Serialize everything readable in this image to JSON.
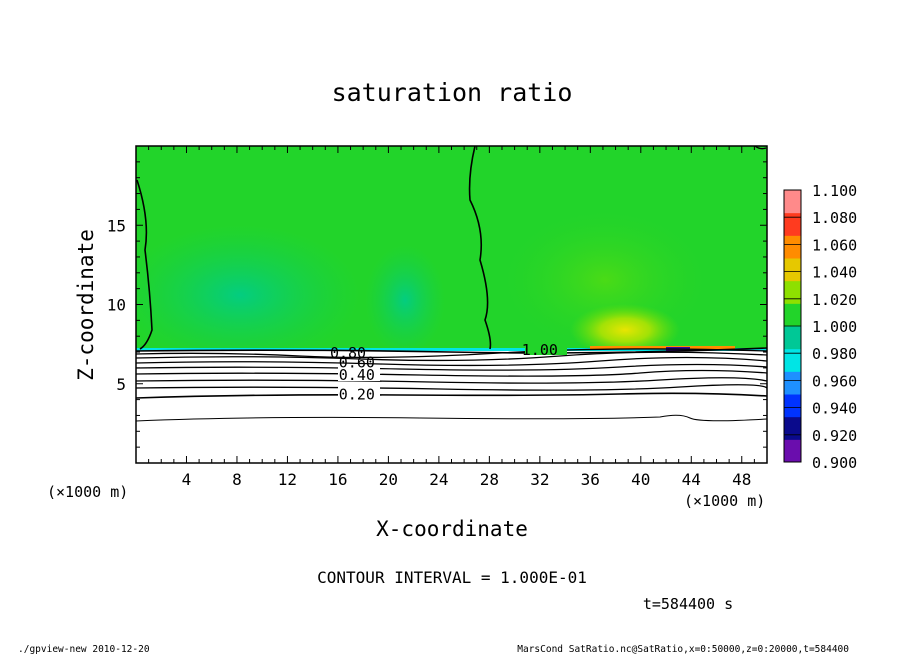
{
  "chart_data": {
    "type": "heatmap",
    "title": "saturation ratio",
    "xlabel": "X-coordinate",
    "ylabel": "Z-coordinate",
    "x_unit_left": "(×1000 m)",
    "x_unit_right": "(×1000 m)",
    "xlim": [
      0,
      50
    ],
    "ylim": [
      0,
      20
    ],
    "x_ticks": [
      4,
      8,
      12,
      16,
      20,
      24,
      28,
      32,
      36,
      40,
      44,
      48
    ],
    "y_ticks": [
      5,
      10,
      15
    ],
    "colorbar": {
      "levels": [
        "0.900",
        "0.920",
        "0.940",
        "0.960",
        "0.980",
        "1.000",
        "1.020",
        "1.040",
        "1.060",
        "1.080",
        "1.100"
      ],
      "colors": [
        "#6a0dad",
        "#0a0a8c",
        "#0033ff",
        "#1e90ff",
        "#00e5e5",
        "#00c896",
        "#22d42a",
        "#8ee000",
        "#e6c800",
        "#ff8c00",
        "#ff3b1f",
        "#ff8a8a"
      ]
    },
    "contour_labels": [
      {
        "text": "0.20",
        "x": 17.5,
        "z": 4.4
      },
      {
        "text": "0.40",
        "x": 17.5,
        "z": 5.6
      },
      {
        "text": "0.60",
        "x": 17.5,
        "z": 6.4
      },
      {
        "text": "0.80",
        "x": 16.8,
        "z": 7.0
      },
      {
        "text": "1.00",
        "x": 32,
        "z": 7.2
      }
    ],
    "contour_interval_text": "CONTOUR INTERVAL = 1.000E-01",
    "time_text": "t=584400 s"
  },
  "footer": {
    "left": "./gpview-new  2010-12-20",
    "right": "MarsCond_SatRatio.nc@SatRatio,x=0:50000,z=0:20000,t=584400"
  }
}
